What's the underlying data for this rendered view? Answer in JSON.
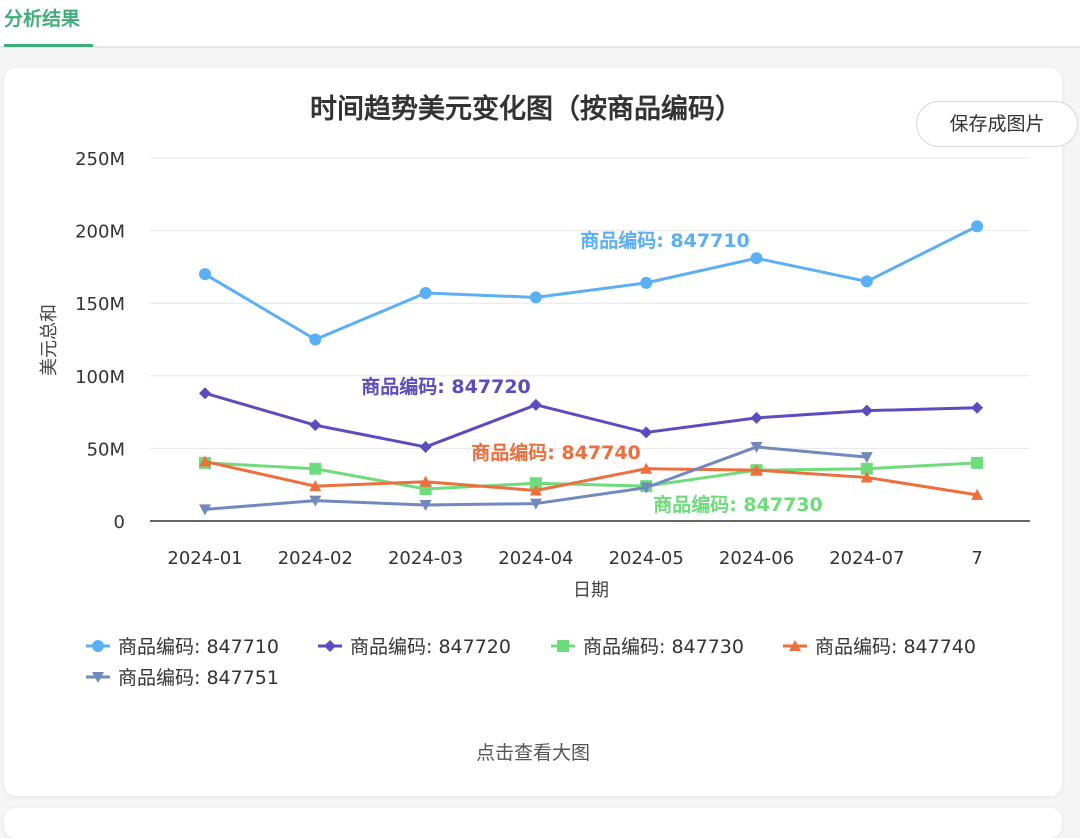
{
  "tabs": {
    "active_label": "分析结果"
  },
  "toolbar": {
    "save_label": "保存成图片"
  },
  "footer": {
    "view_large_label": "点击查看大图"
  },
  "colors": {
    "accent": "#3fae7a",
    "series_847710": "#5bb0f5",
    "series_847720": "#5b4dbf",
    "series_847730": "#6fdc7c",
    "series_847740": "#ee6f3e",
    "series_847751": "#7189bf"
  },
  "chart_data": {
    "type": "line",
    "title": "时间趋势美元变化图（按商品编码）",
    "xlabel": "日期",
    "ylabel": "美元总和",
    "categories": [
      "2024-01",
      "2024-02",
      "2024-03",
      "2024-04",
      "2024-05",
      "2024-06",
      "2024-07",
      "7"
    ],
    "ylim": [
      0,
      250000000
    ],
    "yticks": [
      "0",
      "50M",
      "100M",
      "150M",
      "200M",
      "250M"
    ],
    "grid": true,
    "legend_position": "bottom",
    "series": [
      {
        "name": "商品编码: 847710",
        "marker": "circle",
        "color": "#5bb0f5",
        "values": [
          170000000,
          125000000,
          157000000,
          154000000,
          164000000,
          181000000,
          165000000,
          203000000
        ],
        "label": {
          "text": "商品编码: 847710",
          "at": 4
        }
      },
      {
        "name": "商品编码: 847720",
        "marker": "diamond",
        "color": "#5b4dbf",
        "values": [
          88000000,
          66000000,
          51000000,
          80000000,
          61000000,
          71000000,
          76000000,
          78000000
        ],
        "label": {
          "text": "商品编码: 847720",
          "at": 2
        }
      },
      {
        "name": "商品编码: 847730",
        "marker": "square",
        "color": "#6fdc7c",
        "values": [
          40000000,
          36000000,
          22000000,
          26000000,
          24000000,
          35000000,
          36000000,
          40000000
        ],
        "label": {
          "text": "商品编码: 847730",
          "at": 5
        }
      },
      {
        "name": "商品编码: 847740",
        "marker": "triangle",
        "color": "#ee6f3e",
        "values": [
          41000000,
          24000000,
          27000000,
          21000000,
          36000000,
          35000000,
          30000000,
          18000000
        ],
        "label": {
          "text": "商品编码: 847740",
          "at": 3
        }
      },
      {
        "name": "商品编码: 847751",
        "marker": "triangle-down",
        "color": "#7189bf",
        "values": [
          8000000,
          14000000,
          11000000,
          12000000,
          23000000,
          51000000,
          44000000,
          null
        ],
        "label": null
      }
    ]
  }
}
